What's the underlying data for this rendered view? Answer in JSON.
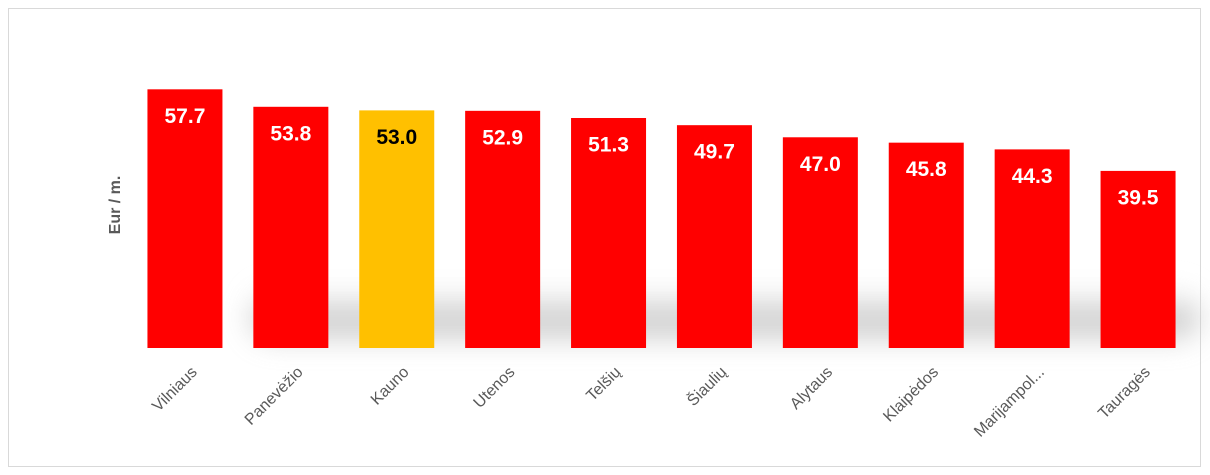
{
  "chart_data": {
    "type": "bar",
    "y_label": "Eur / m.",
    "categories": [
      "Vilniaus",
      "Panevėžio",
      "Kauno",
      "Utenos",
      "Telšių",
      "Šiaulių",
      "Alytaus",
      "Klaipėdos",
      "Marijampol...",
      "Tauragės"
    ],
    "values": [
      57.7,
      53.8,
      53.0,
      52.9,
      51.3,
      49.7,
      47.0,
      45.8,
      44.3,
      39.5
    ],
    "value_labels": [
      "57.7",
      "53.8",
      "53.0",
      "52.9",
      "51.3",
      "49.7",
      "47.0",
      "45.8",
      "44.3",
      "39.5"
    ],
    "colors": [
      "#ff0000",
      "#ff0000",
      "#ffc000",
      "#ff0000",
      "#ff0000",
      "#ff0000",
      "#ff0000",
      "#ff0000",
      "#ff0000",
      "#ff0000"
    ],
    "ylim": [
      0,
      60
    ]
  }
}
